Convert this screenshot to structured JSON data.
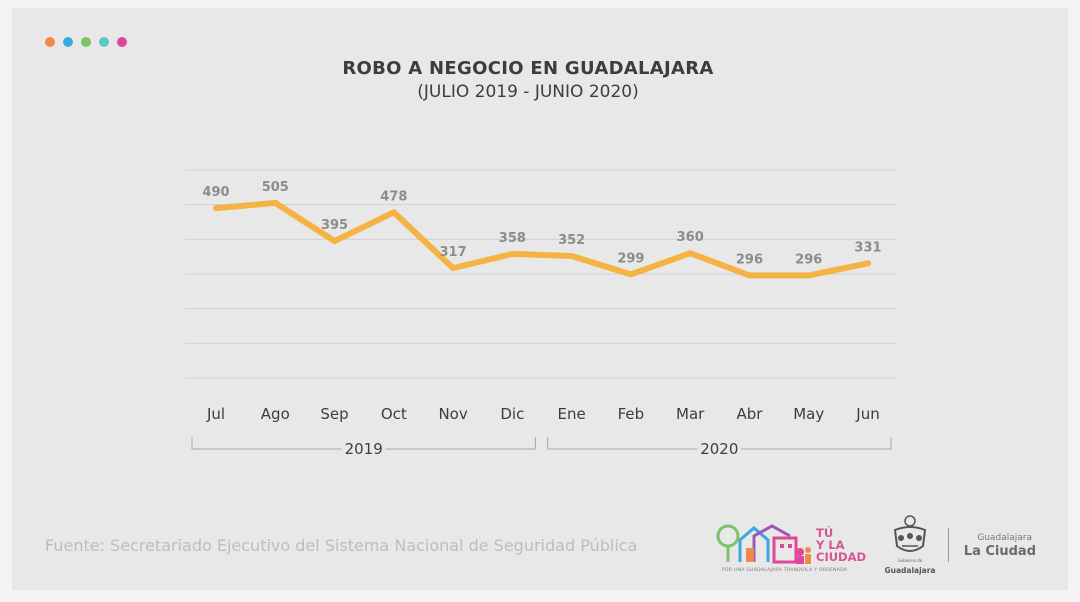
{
  "header": {
    "dot_colors": [
      "#f08a4b",
      "#3aa8e0",
      "#7cc36a",
      "#5cc9c0",
      "#e0479a"
    ]
  },
  "chart_data": {
    "type": "line",
    "title": "ROBO A NEGOCIO EN GUADALAJARA",
    "subtitle": "(JULIO 2019 - JUNIO 2020)",
    "categories": [
      "Jul",
      "Ago",
      "Sep",
      "Oct",
      "Nov",
      "Dic",
      "Ene",
      "Feb",
      "Mar",
      "Abr",
      "May",
      "Jun"
    ],
    "series": [
      {
        "values": [
          490,
          505,
          395,
          478,
          317,
          358,
          352,
          299,
          360,
          296,
          296,
          331
        ],
        "color": "#f5b343"
      }
    ],
    "year_groups": [
      {
        "label": "2019",
        "from": 0,
        "to": 5
      },
      {
        "label": "2020",
        "from": 6,
        "to": 11
      }
    ],
    "ylim": [
      0,
      600
    ],
    "grid": true,
    "data_labels": true
  },
  "footer": {
    "source": "Fuente: Secretariado Ejecutivo del Sistema Nacional de Seguridad Pública",
    "logo_tu": "TÚ\nY LA\nCIUDAD",
    "logo_tu_tagline": "POR UNA GUADALAJARA TRANQUILA Y ORDENADA",
    "seal_small": "Gobierno de",
    "seal_name": "Guadalajara",
    "brand_small": "Guadalajara",
    "brand_big": "La Ciudad"
  }
}
